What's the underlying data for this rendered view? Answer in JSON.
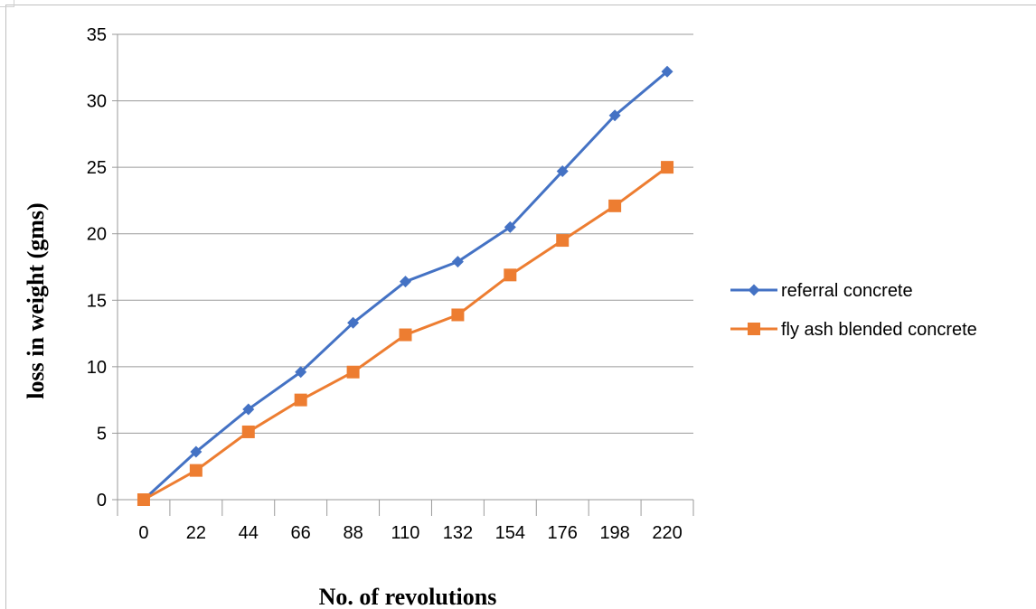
{
  "chart_data": {
    "type": "line",
    "title": "",
    "xlabel": "No. of revolutions",
    "ylabel": "loss in weight (gms)",
    "categories": [
      "0",
      "22",
      "44",
      "66",
      "88",
      "110",
      "132",
      "154",
      "176",
      "198",
      "220"
    ],
    "ylim": [
      0,
      35
    ],
    "yticks": [
      "0",
      "5",
      "10",
      "15",
      "20",
      "25",
      "30",
      "35"
    ],
    "grid": true,
    "legend": "right",
    "series": [
      {
        "name": "referral concrete",
        "color": "#4472C4",
        "marker": "diamond",
        "values": [
          0,
          3.6,
          6.8,
          9.6,
          13.3,
          16.4,
          17.9,
          20.5,
          24.7,
          28.9,
          32.2
        ]
      },
      {
        "name": "fly ash blended concrete",
        "color": "#ED7D31",
        "marker": "square",
        "values": [
          0,
          2.2,
          5.1,
          7.5,
          9.6,
          12.4,
          13.9,
          16.9,
          19.5,
          22.1,
          25.0
        ]
      }
    ]
  }
}
